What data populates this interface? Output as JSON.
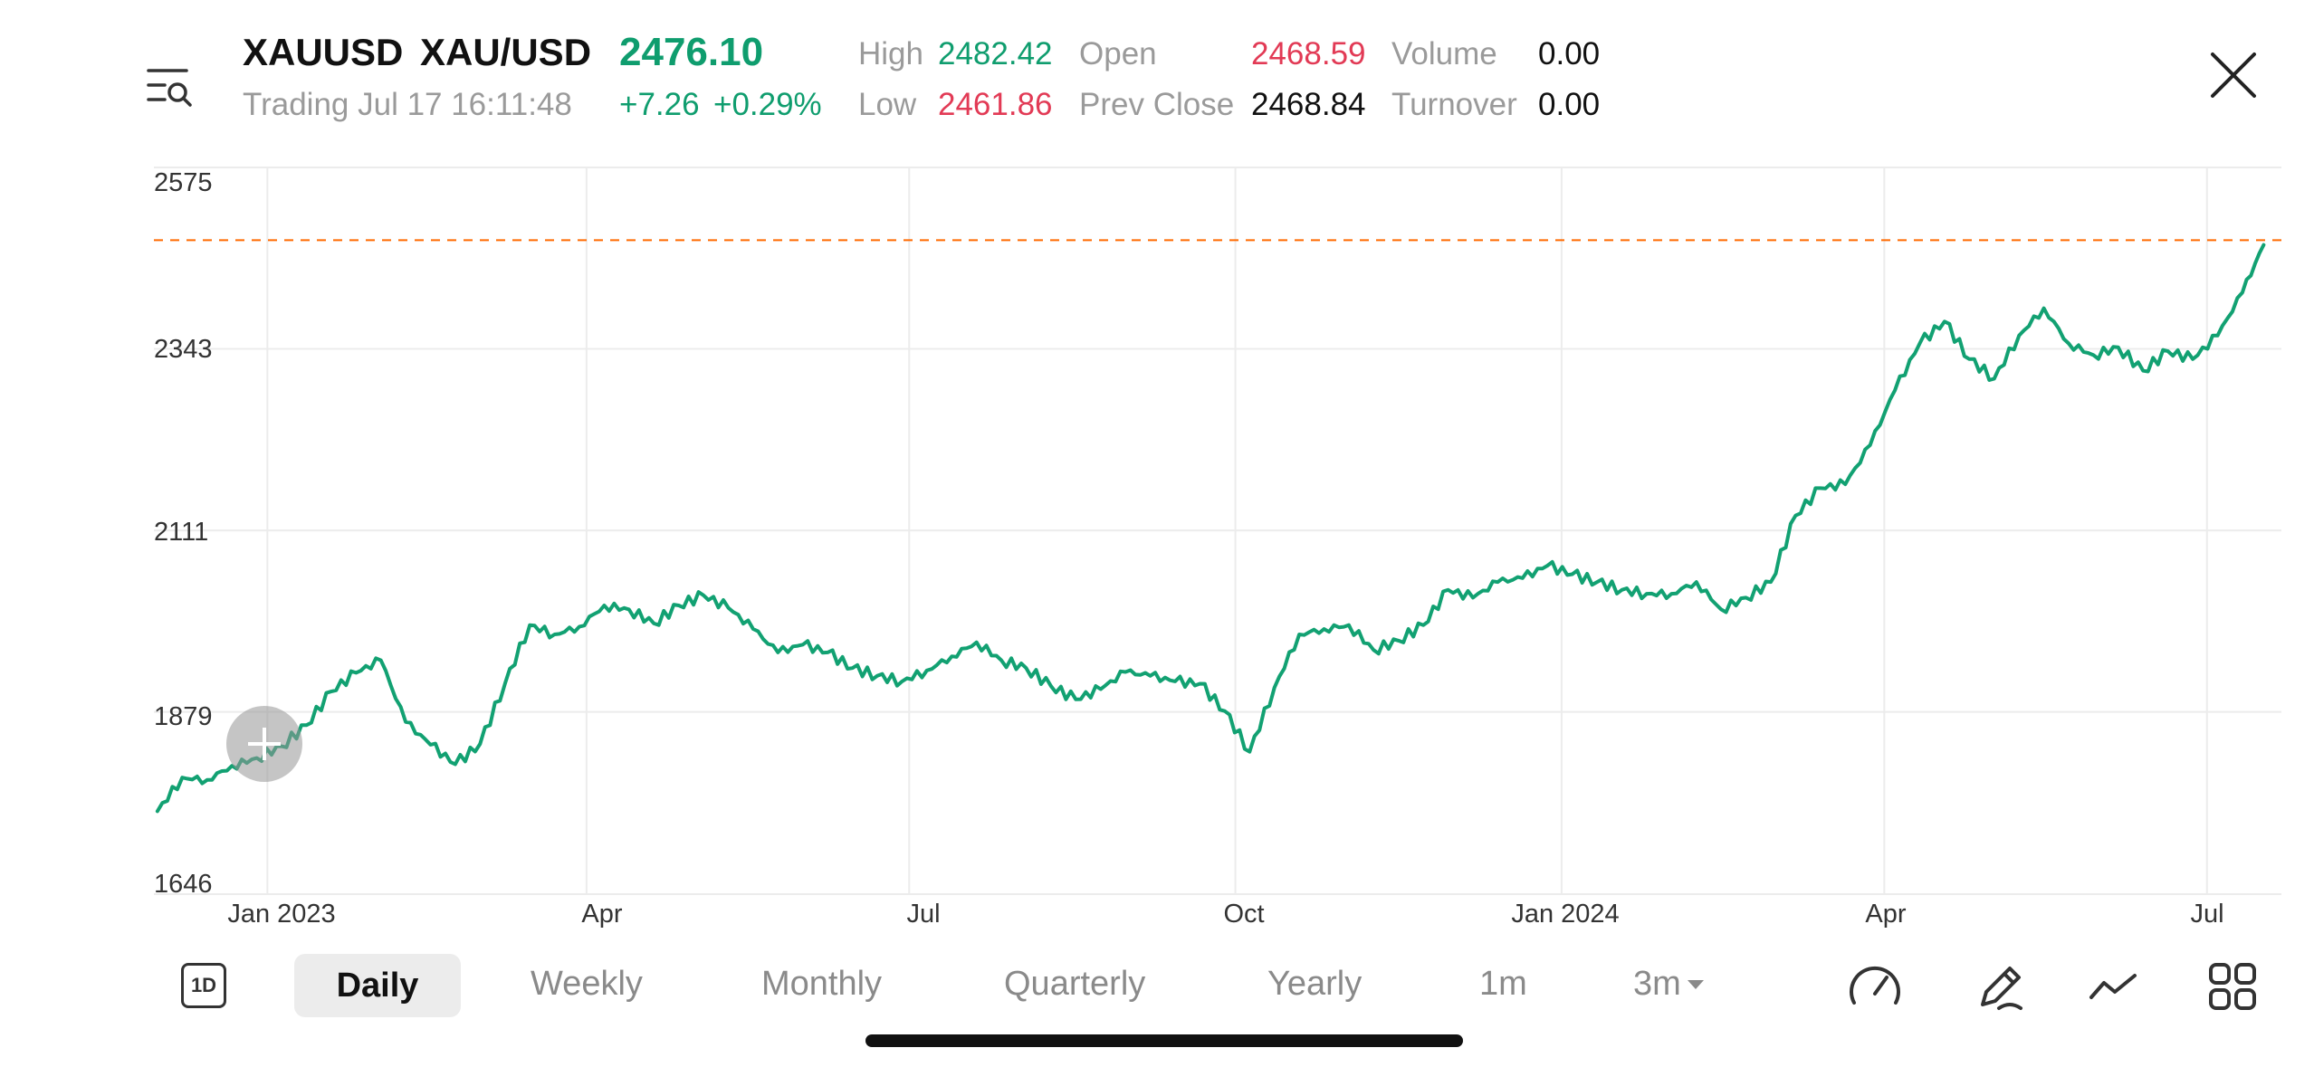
{
  "header": {
    "symbol": "XAUUSD",
    "name": "XAU/USD",
    "price": "2476.10",
    "status": "Trading Jul 17 16:11:48",
    "change": "+7.26",
    "change_pct": "+0.29%",
    "stats": {
      "high_label": "High",
      "high": "2482.42",
      "low_label": "Low",
      "low": "2461.86",
      "open_label": "Open",
      "open": "2468.59",
      "prev_close_label": "Prev Close",
      "prev_close": "2468.84",
      "volume_label": "Volume",
      "volume": "0.00",
      "turnover_label": "Turnover",
      "turnover": "0.00"
    },
    "icons": {
      "menu": "list-search-icon",
      "close": "close-icon"
    }
  },
  "colors": {
    "up": "#0f9d6e",
    "down": "#e23a55",
    "line": "#12a172",
    "ref_line": "#ff6a00"
  },
  "chart_data": {
    "type": "line",
    "title": "",
    "y_ticks": [
      "2575",
      "2343",
      "2111",
      "1879",
      "1646"
    ],
    "x_ticks": [
      "Jan 2023",
      "Apr",
      "Jul",
      "Oct",
      "Jan 2024",
      "Apr",
      "Jul"
    ],
    "ylim": [
      1646,
      2575
    ],
    "grid": true,
    "reference_line": 2482,
    "series": [
      {
        "x": [
          "2022-12-01",
          "2022-12-08",
          "2022-12-15",
          "2022-12-22",
          "2022-12-29",
          "2023-01-05",
          "2023-01-12",
          "2023-01-19",
          "2023-01-26",
          "2023-02-02",
          "2023-02-09",
          "2023-02-16",
          "2023-02-23",
          "2023-03-02",
          "2023-03-09",
          "2023-03-16",
          "2023-03-23",
          "2023-03-30",
          "2023-04-06",
          "2023-04-13",
          "2023-04-20",
          "2023-04-27",
          "2023-05-04",
          "2023-05-11",
          "2023-05-18",
          "2023-05-25",
          "2023-06-01",
          "2023-06-08",
          "2023-06-15",
          "2023-06-22",
          "2023-06-29",
          "2023-07-06",
          "2023-07-13",
          "2023-07-20",
          "2023-07-27",
          "2023-08-03",
          "2023-08-10",
          "2023-08-17",
          "2023-08-24",
          "2023-08-31",
          "2023-09-07",
          "2023-09-14",
          "2023-09-21",
          "2023-09-28",
          "2023-10-05",
          "2023-10-12",
          "2023-10-19",
          "2023-10-26",
          "2023-11-02",
          "2023-11-09",
          "2023-11-16",
          "2023-11-23",
          "2023-11-30",
          "2023-12-07",
          "2023-12-14",
          "2023-12-21",
          "2023-12-28",
          "2024-01-04",
          "2024-01-11",
          "2024-01-18",
          "2024-01-25",
          "2024-02-01",
          "2024-02-08",
          "2024-02-15",
          "2024-02-22",
          "2024-02-29",
          "2024-03-07",
          "2024-03-14",
          "2024-03-21",
          "2024-03-28",
          "2024-04-04",
          "2024-04-11",
          "2024-04-18",
          "2024-04-25",
          "2024-05-02",
          "2024-05-09",
          "2024-05-16",
          "2024-05-23",
          "2024-05-30",
          "2024-06-06",
          "2024-06-13",
          "2024-06-20",
          "2024-06-27",
          "2024-07-04",
          "2024-07-11",
          "2024-07-17"
        ],
        "values": [
          1752,
          1795,
          1792,
          1810,
          1820,
          1835,
          1862,
          1905,
          1929,
          1945,
          1866,
          1837,
          1812,
          1838,
          1915,
          1990,
          1978,
          1988,
          2015,
          2010,
          1992,
          2015,
          2028,
          2012,
          1985,
          1955,
          1965,
          1955,
          1935,
          1925,
          1918,
          1932,
          1950,
          1968,
          1945,
          1935,
          1912,
          1895,
          1908,
          1930,
          1925,
          1918,
          1915,
          1880,
          1828,
          1910,
          1978,
          1985,
          1990,
          1958,
          1970,
          1990,
          2035,
          2025,
          2045,
          2050,
          2066,
          2055,
          2045,
          2035,
          2030,
          2030,
          2045,
          2010,
          2025,
          2045,
          2130,
          2165,
          2170,
          2220,
          2290,
          2350,
          2378,
          2330,
          2305,
          2360,
          2395,
          2350,
          2335,
          2345,
          2315,
          2340,
          2330,
          2360,
          2415,
          2476
        ]
      }
    ]
  },
  "toolbar": {
    "interval_icon_label": "1D",
    "tabs": [
      "Daily",
      "Weekly",
      "Monthly",
      "Quarterly",
      "Yearly",
      "1m"
    ],
    "dropdown_label": "3m",
    "active_tab": "Daily",
    "icons": [
      "speedometer-icon",
      "pen-icon",
      "line-chart-icon",
      "grid-icon"
    ]
  }
}
